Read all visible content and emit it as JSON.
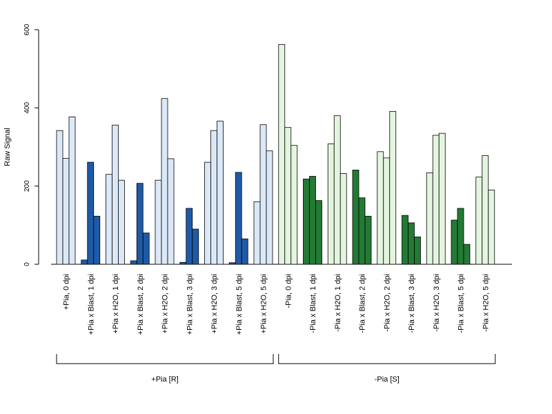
{
  "chart_data": {
    "type": "bar",
    "ylabel": "Raw Signal",
    "ylim": [
      0,
      600
    ],
    "yticks": [
      0,
      200,
      400,
      600
    ],
    "categories": [
      "+Pia, 0 dpi",
      "+Pia x Blast, 1 dpi",
      "+Pia x H2O, 1 dpi",
      "+Pia x Blast, 2 dpi",
      "+Pia x H2O, 2 dpi",
      "+Pia x Blast, 3 dpi",
      "+Pia x H2O, 3 dpi",
      "+Pia x Blast, 5 dpi",
      "+Pia x H2O, 5 dpi",
      "-Pia, 0 dpi",
      "-Pia x Blast, 1 dpi",
      "-Pia x H2O, 1 dpi",
      "-Pia x Blast, 2 dpi",
      "-Pia x H2O, 2 dpi",
      "-Pia x Blast, 3 dpi",
      "-Pia x H2O, 3 dpi",
      "-Pia x Blast, 5 dpi",
      "-Pia x H2O, 5 dpi"
    ],
    "values": [
      [
        342,
        271,
        377
      ],
      [
        11,
        261,
        123
      ],
      [
        230,
        356,
        215
      ],
      [
        9,
        207,
        80
      ],
      [
        215,
        424,
        270
      ],
      [
        5,
        143,
        90
      ],
      [
        261,
        342,
        366
      ],
      [
        4,
        235,
        65
      ],
      [
        160,
        357,
        290
      ],
      [
        562,
        350,
        304
      ],
      [
        218,
        225,
        163
      ],
      [
        308,
        380,
        232
      ],
      [
        241,
        170,
        123
      ],
      [
        288,
        272,
        391
      ],
      [
        125,
        106,
        70
      ],
      [
        234,
        330,
        335
      ],
      [
        113,
        143,
        51
      ],
      [
        223,
        278,
        190
      ]
    ],
    "colors": {
      "blast_plus": "#1f5aa6",
      "h2o_plus": "#dbe8f7",
      "blast_minus": "#237a35",
      "h2o_minus": "#e3f5de"
    },
    "groups": [
      {
        "label": "+Pia [R]",
        "from": 0,
        "to": 8
      },
      {
        "label": "-Pia [S]",
        "from": 9,
        "to": 17
      }
    ]
  }
}
